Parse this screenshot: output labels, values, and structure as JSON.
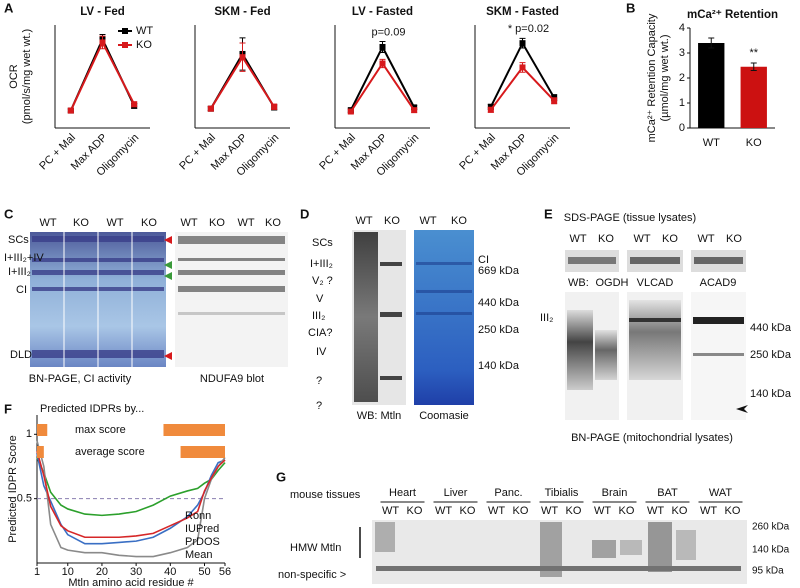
{
  "chart_data": [
    {
      "type": "line",
      "title": "LV - Fed",
      "ylabel": [
        "OCR",
        "(pmol/s/mg wet wt.)"
      ],
      "categories": [
        "PC + Mal",
        "Max ADP",
        "Oligomycin"
      ],
      "ylim": [
        0,
        65
      ],
      "legend": "upper right",
      "series": [
        {
          "name": "WT",
          "color": "#000000",
          "values": [
            11,
            56,
            14
          ],
          "errors": [
            1,
            3,
            1.5
          ]
        },
        {
          "name": "KO",
          "color": "#d7191c",
          "values": [
            11,
            54,
            15
          ],
          "errors": [
            1,
            4,
            1.5
          ]
        }
      ]
    },
    {
      "type": "line",
      "title": "SKM - Fed",
      "categories": [
        "PC + Mal",
        "Max ADP",
        "Oligomycin"
      ],
      "ylim": [
        0,
        16
      ],
      "series": [
        {
          "color": "#000000",
          "values": [
            3,
            11.5,
            3.2
          ],
          "errors": [
            0.3,
            2.5,
            0.4
          ]
        },
        {
          "color": "#d7191c",
          "values": [
            3,
            11,
            3.3
          ],
          "errors": [
            0.3,
            2.2,
            0.4
          ]
        }
      ]
    },
    {
      "type": "line",
      "title": "LV - Fasted",
      "categories": [
        "PC + Mal",
        "Max ADP",
        "Oligomycin"
      ],
      "ylim": [
        0,
        75
      ],
      "annotations": [
        "p=0.09"
      ],
      "series": [
        {
          "color": "#000000",
          "values": [
            13,
            59,
            15
          ],
          "errors": [
            1.5,
            4,
            1.5
          ]
        },
        {
          "color": "#d7191c",
          "values": [
            12,
            47,
            13
          ],
          "errors": [
            1.5,
            3,
            1.5
          ]
        }
      ]
    },
    {
      "type": "line",
      "title": "SKM - Fasted",
      "categories": [
        "PC + Mal",
        "Max ADP",
        "Oligomycin"
      ],
      "ylim": [
        0,
        17
      ],
      "annotations": [
        "* p=0.02"
      ],
      "series": [
        {
          "color": "#000000",
          "values": [
            3.5,
            14,
            5
          ],
          "errors": [
            0.4,
            0.8,
            0.5
          ]
        },
        {
          "color": "#d7191c",
          "values": [
            3,
            10,
            4.5
          ],
          "errors": [
            0.4,
            0.8,
            0.5
          ]
        }
      ]
    },
    {
      "type": "bar",
      "title": "mCa²⁺ Retention",
      "ylabel": [
        "mCa²⁺ Retention Capacity",
        "(µmol/mg wet wt.)"
      ],
      "categories": [
        "WT",
        "KO"
      ],
      "values": [
        3.4,
        2.45
      ],
      "errors": [
        0.2,
        0.15
      ],
      "colors": [
        "#000000",
        "#cc1111"
      ],
      "ylim": [
        0,
        4
      ],
      "yticks": [
        0,
        1,
        2,
        3,
        4
      ],
      "annotations": [
        "**"
      ]
    },
    {
      "type": "line",
      "ylabel": "Predicted IDPR Score",
      "xlabel": "Mtln amino acid residue #",
      "x": [
        1,
        3,
        5,
        8,
        10,
        15,
        20,
        25,
        30,
        35,
        40,
        45,
        48,
        50,
        52,
        54,
        56
      ],
      "xlim": [
        1,
        56
      ],
      "xticks": [
        1,
        10,
        20,
        30,
        40,
        50,
        56
      ],
      "ylim": [
        0,
        1.15
      ],
      "yticks": [
        0.5,
        1
      ],
      "reference_line": 0.5,
      "legend": "lower right",
      "series": [
        {
          "name": "Ronn",
          "color": "#2ca02c",
          "values": [
            0.82,
            0.7,
            0.55,
            0.45,
            0.42,
            0.38,
            0.37,
            0.38,
            0.4,
            0.45,
            0.52,
            0.56,
            0.58,
            0.62,
            0.65,
            0.72,
            0.78
          ]
        },
        {
          "name": "IUPred",
          "color": "#3a6fc4",
          "values": [
            0.85,
            0.6,
            0.48,
            0.3,
            0.22,
            0.15,
            0.15,
            0.16,
            0.17,
            0.2,
            0.27,
            0.36,
            0.45,
            0.55,
            0.68,
            0.78,
            0.8
          ]
        },
        {
          "name": "PrDOS",
          "color": "#8a8a8a",
          "values": [
            0.95,
            0.75,
            0.3,
            0.12,
            0.1,
            0.08,
            0.08,
            0.06,
            0.05,
            0.05,
            0.08,
            0.12,
            0.18,
            0.5,
            0.65,
            0.75,
            0.82
          ]
        },
        {
          "name": "Mean",
          "color": "#d62728",
          "values": [
            0.87,
            0.68,
            0.44,
            0.29,
            0.25,
            0.2,
            0.2,
            0.2,
            0.21,
            0.23,
            0.29,
            0.35,
            0.4,
            0.56,
            0.66,
            0.75,
            0.8
          ]
        }
      ],
      "idpr": {
        "title": "Predicted IDPRs by...",
        "color": "#f08a3c",
        "rows": [
          {
            "label": "max score",
            "ranges": [
              [
                1,
                4
              ],
              [
                38,
                56
              ]
            ]
          },
          {
            "label": "average score",
            "ranges": [
              [
                1,
                3
              ],
              [
                43,
                56
              ]
            ]
          }
        ]
      }
    }
  ],
  "panel_labels": [
    "A",
    "B",
    "C",
    "D",
    "E",
    "F",
    "G"
  ],
  "panel_c": {
    "lanes": [
      "WT",
      "KO",
      "WT",
      "KO",
      "WT",
      "KO",
      "WT",
      "KO"
    ],
    "bands": [
      "SCs",
      "I+III₂+IV",
      "I+III₂",
      "CI",
      "DLD"
    ],
    "captions": [
      "BN-PAGE, CI activity",
      "NDUFA9 blot"
    ]
  },
  "panel_d": {
    "lanes": [
      "WT",
      "KO",
      "WT",
      "KO"
    ],
    "bands": [
      "SCs",
      "I+III₂",
      "V₂ ?",
      "V",
      "III₂",
      "CIA?",
      "IV",
      "?",
      "?"
    ],
    "markers": [
      "CI",
      "669 kDa",
      "440 kDa",
      "250 kDa",
      "140 kDa"
    ],
    "captions": [
      "WB: Mtln",
      "Coomasie"
    ]
  },
  "panel_e": {
    "title": "SDS-PAGE (tissue lysates)",
    "lanes": [
      "WT",
      "KO",
      "WT",
      "KO",
      "WT",
      "KO"
    ],
    "wb": "WB:",
    "antibodies": [
      "OGDH",
      "VLCAD",
      "ACAD9"
    ],
    "band": "III₂",
    "markers": [
      "440 kDa",
      "250 kDa",
      "140 kDa"
    ],
    "caption": "BN-PAGE (mitochondrial lysates)"
  },
  "panel_g": {
    "title": "mouse tissues",
    "tissues": [
      "Heart",
      "Liver",
      "Panc.",
      "Tibialis",
      "Brain",
      "BAT",
      "WAT"
    ],
    "lanes": [
      "WT",
      "KO"
    ],
    "bands": [
      "HMW Mtln",
      "non-specific >"
    ],
    "markers": [
      "260 kDa",
      "140 kDa",
      "95 kDa"
    ]
  }
}
